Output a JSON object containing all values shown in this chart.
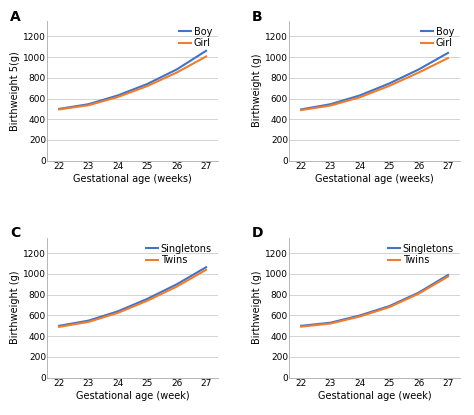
{
  "x": [
    22,
    23,
    24,
    25,
    26,
    27
  ],
  "panels": [
    {
      "label": "A",
      "ylabel": "Birthweight 5(g)",
      "xlabel": "Gestational age (weeks)",
      "line1_label": "Boy",
      "line2_label": "Girl",
      "line1_color": "#4472C4",
      "line2_color": "#ED7D31",
      "line1_y": [
        500,
        545,
        630,
        740,
        880,
        1060
      ],
      "line2_y": [
        495,
        535,
        615,
        720,
        850,
        1005
      ]
    },
    {
      "label": "B",
      "ylabel": "Birthweight (g)",
      "xlabel": "Gestational age (weeks)",
      "line1_label": "Boy",
      "line2_label": "Girl",
      "line1_color": "#4472C4",
      "line2_color": "#ED7D31",
      "line1_y": [
        495,
        545,
        630,
        745,
        880,
        1040
      ],
      "line2_y": [
        488,
        532,
        612,
        722,
        850,
        990
      ]
    },
    {
      "label": "C",
      "ylabel": "Birthweight (g)",
      "xlabel": "Gestational age (week)",
      "line1_label": "Singletons",
      "line2_label": "Twins",
      "line1_color": "#4472C4",
      "line2_color": "#ED7D31",
      "line1_y": [
        500,
        550,
        640,
        760,
        900,
        1065
      ],
      "line2_y": [
        490,
        538,
        625,
        742,
        878,
        1040
      ]
    },
    {
      "label": "D",
      "ylabel": "Birthweight (g)",
      "xlabel": "Gestational age (week)",
      "line1_label": "Singletons",
      "line2_label": "Twins",
      "line1_color": "#4472C4",
      "line2_color": "#ED7D31",
      "line1_y": [
        500,
        530,
        600,
        690,
        820,
        990
      ],
      "line2_y": [
        492,
        522,
        590,
        680,
        810,
        975
      ]
    }
  ],
  "yticks": [
    0,
    200,
    400,
    600,
    800,
    1000,
    1200
  ],
  "xticks": [
    22,
    23,
    24,
    25,
    26,
    27
  ],
  "ylim": [
    0,
    1350
  ],
  "xlim": [
    21.6,
    27.4
  ],
  "bg_color": "#ffffff",
  "fig_bg_color": "#ffffff",
  "label_fontsize": 7,
  "tick_fontsize": 6.5,
  "legend_fontsize": 7,
  "panel_label_fontsize": 10,
  "line_width": 1.5,
  "grid_color": "#cccccc",
  "spine_color": "#aaaaaa"
}
